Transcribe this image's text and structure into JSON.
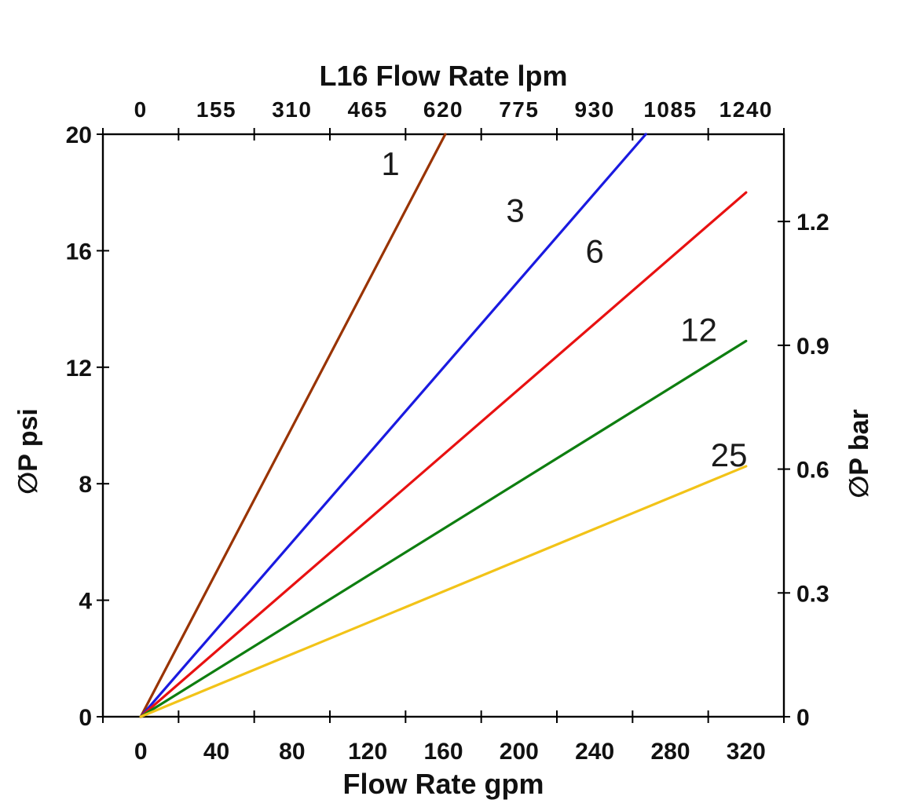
{
  "chart_data": {
    "type": "line",
    "title": "L16 Flow Rate lpm",
    "x_axis_top": {
      "title": "L16 Flow Rate lpm",
      "unit": "lpm",
      "ticks": [
        0,
        155,
        310,
        465,
        620,
        775,
        930,
        1085,
        1240
      ]
    },
    "x_axis_bottom": {
      "title": "Flow Rate gpm",
      "unit": "gpm",
      "ticks": [
        0,
        40,
        80,
        120,
        160,
        200,
        240,
        280,
        320
      ],
      "range": [
        0,
        320
      ]
    },
    "y_axis_left": {
      "title": "∅P psi",
      "unit": "psi",
      "ticks": [
        0,
        4,
        8,
        12,
        16,
        20
      ],
      "range": [
        0,
        20
      ]
    },
    "y_axis_right": {
      "title": "∅P bar",
      "unit": "bar",
      "ticks": [
        0,
        0.3,
        0.6,
        0.9,
        1.2
      ],
      "psi_per_bar": 14.17
    },
    "grid": false,
    "legend": "inline-labels",
    "series": [
      {
        "label": "1",
        "color": "#993300",
        "points_gpm_psi": [
          [
            0,
            0
          ],
          [
            161,
            20
          ]
        ],
        "label_at_gpm_psi": [
          132,
          19.0
        ]
      },
      {
        "label": "3",
        "color": "#1A1AE0",
        "points_gpm_psi": [
          [
            0,
            0
          ],
          [
            267,
            20
          ]
        ],
        "label_at_gpm_psi": [
          198,
          17.4
        ]
      },
      {
        "label": "6",
        "color": "#E81111",
        "points_gpm_psi": [
          [
            0,
            0
          ],
          [
            320,
            18.0
          ]
        ],
        "label_at_gpm_psi": [
          240,
          16.0
        ]
      },
      {
        "label": "12",
        "color": "#0E7E10",
        "points_gpm_psi": [
          [
            0,
            0
          ],
          [
            320,
            12.9
          ]
        ],
        "label_at_gpm_psi": [
          295,
          13.3
        ]
      },
      {
        "label": "25",
        "color": "#F2C318",
        "points_gpm_psi": [
          [
            0,
            0
          ],
          [
            320,
            8.6
          ]
        ],
        "label_at_gpm_psi": [
          311,
          9.0
        ]
      }
    ]
  }
}
